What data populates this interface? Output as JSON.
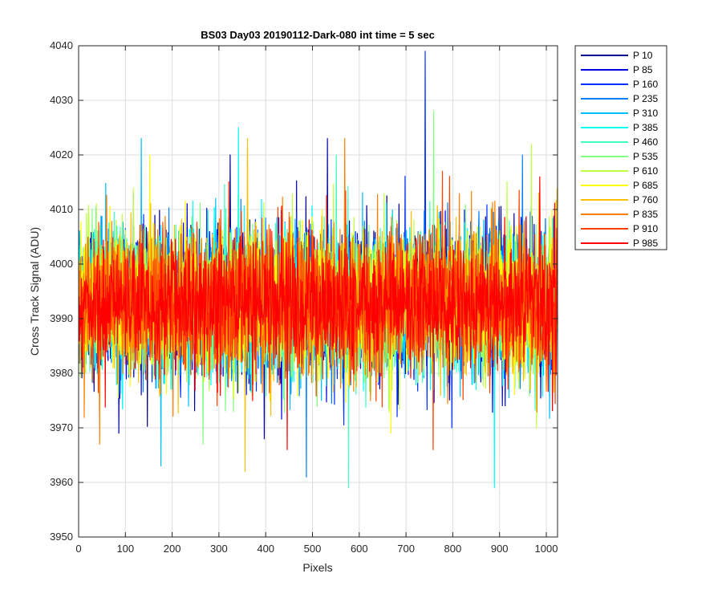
{
  "chart_data": {
    "type": "line",
    "title": "BS03 Day03 20190112-Dark-080 int time = 5 sec",
    "xlabel": "Pixels",
    "ylabel": "Cross Track Signal (ADU)",
    "xlim": [
      0,
      1024
    ],
    "ylim": [
      3950,
      4040
    ],
    "xticks": [
      0,
      100,
      200,
      300,
      400,
      500,
      600,
      700,
      800,
      900,
      1000
    ],
    "yticks": [
      3950,
      3960,
      3970,
      3980,
      3990,
      4000,
      4010,
      4020,
      4030,
      4040
    ],
    "grid": true,
    "legend_position": "outside-top-right",
    "x_range": [
      1,
      1024
    ],
    "series": [
      {
        "name": "P 10",
        "color": "#00008F",
        "mean": 3993,
        "spread": 6.5,
        "min": 3968,
        "max": 4020
      },
      {
        "name": "P 85",
        "color": "#0000E0",
        "mean": 3993,
        "spread": 6.5,
        "min": 3969,
        "max": 4023
      },
      {
        "name": "P 160",
        "color": "#0030FF",
        "mean": 3993,
        "spread": 6.5,
        "min": 3970,
        "max": 4039
      },
      {
        "name": "P 235",
        "color": "#0080FF",
        "mean": 3993,
        "spread": 6.5,
        "min": 3961,
        "max": 4020
      },
      {
        "name": "P 310",
        "color": "#00BFFF",
        "mean": 3993,
        "spread": 6.5,
        "min": 3963,
        "max": 4023
      },
      {
        "name": "P 385",
        "color": "#00FFFF",
        "mean": 3993,
        "spread": 6.5,
        "min": 3959,
        "max": 4025
      },
      {
        "name": "P 460",
        "color": "#40FFBF",
        "mean": 3993,
        "spread": 6.5,
        "min": 3959,
        "max": 4020
      },
      {
        "name": "P 535",
        "color": "#80FF80",
        "mean": 3993,
        "spread": 6.5,
        "min": 3967,
        "max": 4028
      },
      {
        "name": "P 610",
        "color": "#BFFF40",
        "mean": 3993,
        "spread": 6.5,
        "min": 3970,
        "max": 4022
      },
      {
        "name": "P 685",
        "color": "#FFFF00",
        "mean": 3993,
        "spread": 6.5,
        "min": 3969,
        "max": 4020
      },
      {
        "name": "P 760",
        "color": "#FFBF00",
        "mean": 3993,
        "spread": 6.5,
        "min": 3962,
        "max": 4023
      },
      {
        "name": "P 835",
        "color": "#FF8000",
        "mean": 3993,
        "spread": 6.5,
        "min": 3967,
        "max": 4023
      },
      {
        "name": "P 910",
        "color": "#FF4000",
        "mean": 3993,
        "spread": 6.5,
        "min": 3966,
        "max": 4017
      },
      {
        "name": "P 985",
        "color": "#FF0000",
        "mean": 3993,
        "spread": 6.0,
        "min": 3966,
        "max": 4016
      }
    ]
  }
}
